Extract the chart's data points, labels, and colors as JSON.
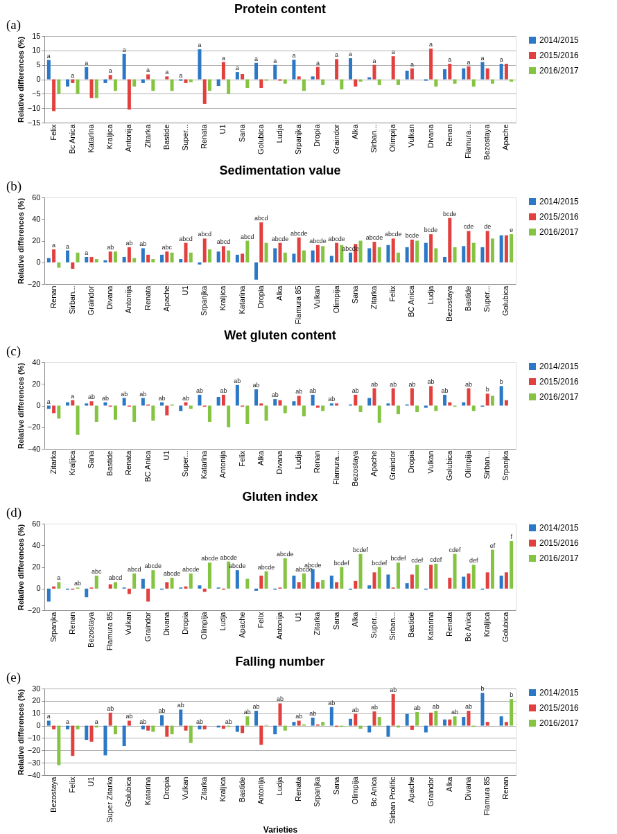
{
  "chart_data": [
    {
      "type": "bar",
      "title": "Protein content",
      "ylabel": "Relative differences (%)",
      "ylim": [
        -15,
        15
      ],
      "yticks": [
        -15,
        -10,
        -5,
        0,
        5,
        10,
        15
      ],
      "grid": "y",
      "legend": "right",
      "categories": [
        "Felix",
        "Bc Anica",
        "Katarina",
        "Kraljica",
        "Antonija",
        "Zitarka",
        "Bastide",
        "Super...",
        "Renata",
        "U1",
        "Sana",
        "Golubica",
        "Ludja",
        "Srpanjka",
        "Dropia",
        "Graindor",
        "Alka",
        "Sirban...",
        "Olimpija",
        "Vulkan",
        "Divana",
        "Renan",
        "Flamura...",
        "Bezostaya",
        "Apache"
      ],
      "series": [
        {
          "name": "2014/2015",
          "color": "#2a78c6",
          "values": [
            6.7,
            -2.5,
            4.2,
            -1.3,
            8.8,
            -1.3,
            0,
            -0.5,
            10.4,
            -2.3,
            2.5,
            5.7,
            5,
            6.8,
            1,
            0,
            7.3,
            0.7,
            0,
            3,
            -0.5,
            3.5,
            3.8,
            6,
            5.4
          ],
          "value_labels": [
            "a",
            null,
            "a",
            null,
            "a",
            null,
            null,
            "a",
            "a",
            null,
            "a",
            "a",
            "a",
            "a",
            null,
            null,
            "a",
            null,
            null,
            null,
            null,
            null,
            null,
            "a",
            "a"
          ]
        },
        {
          "name": "2015/2016",
          "color": "#e2403e",
          "values": [
            -11,
            -1.3,
            -6.5,
            1.5,
            -10.5,
            1.7,
            1,
            -1.3,
            -8.5,
            6,
            1.8,
            -3,
            -0.5,
            1,
            4.3,
            7,
            -2.5,
            5,
            8,
            3.8,
            10.6,
            5.4,
            4.5,
            3.8,
            5.4
          ],
          "value_labels": [
            null,
            "a",
            null,
            "a",
            null,
            "a",
            "a",
            null,
            null,
            "a",
            null,
            null,
            null,
            null,
            "a",
            "a",
            null,
            "a",
            "a",
            "a",
            "a",
            "a",
            "a",
            null,
            null
          ]
        },
        {
          "name": "2016/2017",
          "color": "#84c441",
          "values": [
            -5,
            -5,
            -6.5,
            -4,
            -2.5,
            -4,
            -4,
            -1,
            -4,
            -5,
            -3,
            -0.5,
            -1.5,
            -4,
            -2,
            -3.5,
            -0.8,
            -2,
            -2,
            0,
            -2.5,
            -1.5,
            -2.5,
            -1.5,
            -0.8
          ]
        }
      ],
      "annotations": [
        "(a)"
      ]
    },
    {
      "type": "bar",
      "title": "Sedimentation value",
      "ylabel": "Relative differences (%)",
      "ylim": [
        -20,
        60
      ],
      "yticks": [
        -20,
        0,
        20,
        40,
        60
      ],
      "legend": "right",
      "categories": [
        "Renan",
        "Sirban...",
        "Graindor",
        "Divana",
        "Antonija",
        "Renata",
        "Apache",
        "U1",
        "Srpanjka",
        "Kraljica",
        "Katarina",
        "Dropia",
        "Alka",
        "Flamura 85",
        "Vulkan",
        "Olimpija",
        "Sana",
        "Zitarka",
        "Felix",
        "BC Anica",
        "Ludja",
        "Bezostaya",
        "Bastide",
        "Super...",
        "Golubica"
      ],
      "series": [
        {
          "name": "2014/2015",
          "color": "#2a78c6",
          "values": [
            4,
            11,
            5,
            2,
            5,
            13,
            7,
            3,
            -2,
            10,
            7,
            -16,
            13,
            8,
            11,
            6,
            9,
            13,
            16,
            14,
            18,
            5,
            15,
            14,
            25
          ],
          "value_labels": [
            null,
            "a",
            "a",
            null,
            null,
            "ab",
            null,
            null,
            null,
            null,
            null,
            null,
            null,
            null,
            null,
            null,
            "abcde",
            null,
            null,
            null,
            null,
            null,
            null,
            null,
            null
          ]
        },
        {
          "name": "2015/2016",
          "color": "#e2403e",
          "values": [
            12,
            -6,
            5,
            10,
            14,
            7,
            10,
            18,
            22,
            15,
            8,
            37,
            18,
            23,
            16,
            18,
            17,
            19,
            22,
            21,
            26,
            41,
            29,
            29,
            25
          ],
          "value_labels": [
            "a",
            null,
            null,
            "ab",
            "ab",
            null,
            "abc",
            "abcd",
            "abcd",
            "abcd",
            null,
            "abcd",
            "abcde",
            "abcde",
            "abcde",
            "abcde",
            null,
            "abcde",
            "abcde",
            "bcde",
            "bcde",
            "bcde",
            "cde",
            "de",
            null
          ]
        },
        {
          "name": "2016/2017",
          "color": "#84c441",
          "values": [
            -5,
            9,
            3,
            10,
            4,
            3,
            9,
            9,
            12,
            11,
            20,
            18,
            9,
            11,
            15,
            16,
            20,
            14,
            9,
            20,
            13,
            14,
            18,
            22,
            26
          ],
          "value_labels": [
            null,
            null,
            null,
            null,
            null,
            null,
            null,
            null,
            null,
            null,
            "abcd",
            null,
            null,
            null,
            null,
            null,
            null,
            null,
            null,
            null,
            null,
            null,
            null,
            null,
            "e"
          ]
        }
      ],
      "annotations": [
        "(b)"
      ]
    },
    {
      "type": "bar",
      "title": "Wet gluten content",
      "ylabel": "Relative differences (%)",
      "ylim": [
        -40,
        40
      ],
      "yticks": [
        -40,
        -20,
        0,
        20,
        40
      ],
      "legend": "right",
      "categories": [
        "Zitarka",
        "Kraljica",
        "Sana",
        "Bastide",
        "Renata",
        "BC Anica",
        "U1",
        "Super...",
        "Katarina",
        "Antonija",
        "Felix",
        "Alka",
        "Divana",
        "Ludja",
        "Renan",
        "Flamura...",
        "Bezostaya",
        "Apache",
        "Graindor",
        "Dropia",
        "Vulkan",
        "Golubica",
        "Olimpija",
        "Sirban...",
        "Srpanjka"
      ],
      "series": [
        {
          "name": "2014/2015",
          "color": "#2a78c6",
          "values": [
            -3,
            3,
            2,
            3,
            7,
            7,
            3,
            -5,
            10,
            8,
            19,
            15,
            6,
            4,
            10,
            2,
            1,
            7,
            2,
            1,
            -2,
            10,
            3,
            -1,
            18
          ],
          "value_labels": [
            "a",
            null,
            null,
            "ab",
            "ab",
            "ab",
            "ab",
            null,
            "ab",
            null,
            "ab",
            "ab",
            "ab",
            null,
            "ab",
            "ab",
            null,
            null,
            null,
            null,
            null,
            "ab",
            null,
            null,
            "b"
          ]
        },
        {
          "name": "2015/2016",
          "color": "#e2403e",
          "values": [
            -7,
            5,
            4,
            -1,
            -1,
            1,
            -9,
            3,
            -1,
            10,
            -1,
            2,
            5,
            9,
            -2,
            2,
            10,
            16,
            16,
            16,
            18,
            3,
            16,
            11,
            5
          ],
          "value_labels": [
            null,
            "a",
            "ab",
            null,
            null,
            null,
            null,
            "ab",
            null,
            "ab",
            null,
            null,
            null,
            "ab",
            null,
            null,
            "ab",
            "ab",
            "ab",
            "ab",
            "ab",
            null,
            "ab",
            "b",
            null
          ]
        },
        {
          "name": "2016/2017",
          "color": "#84c441",
          "values": [
            -12,
            -27,
            -15,
            -13,
            -15,
            -14,
            1,
            -3,
            -15,
            -20,
            -17,
            -14,
            -7,
            -10,
            -5,
            0,
            -6,
            -16,
            -8,
            -6,
            -5,
            -1,
            -5,
            9,
            0
          ]
        }
      ],
      "annotations": [
        "(c)"
      ]
    },
    {
      "type": "bar",
      "title": "Gluten index",
      "ylabel": "Relative differences (%)",
      "ylim": [
        -20,
        60
      ],
      "yticks": [
        -20,
        0,
        20,
        40,
        60
      ],
      "legend": "right",
      "categories": [
        "Srpanjka",
        "Renan",
        "Bezostaya",
        "Flamura 85",
        "Vulkan",
        "Graindor",
        "Divana",
        "Dropia",
        "Olimpija",
        "Ludja",
        "Apache",
        "Felix",
        "Antonija",
        "U1",
        "Zitarka",
        "Sana",
        "Alka",
        "Super...",
        "Sirban...",
        "Bastide",
        "Katarina",
        "Renata",
        "Bc Anica",
        "Kraljica",
        "Golubica"
      ],
      "series": [
        {
          "name": "2014/2015",
          "color": "#2a78c6",
          "values": [
            -12,
            -1,
            -8,
            0,
            1,
            9,
            -1,
            1,
            3,
            1,
            17,
            -2,
            -1,
            12,
            18,
            12,
            -1,
            3,
            13,
            5,
            -1,
            0,
            11,
            -1,
            12
          ],
          "value_labels": [
            null,
            null,
            null,
            null,
            null,
            null,
            null,
            null,
            null,
            null,
            "abcde",
            null,
            null,
            null,
            "abcde",
            null,
            null,
            null,
            null,
            null,
            null,
            null,
            null,
            null,
            null
          ]
        },
        {
          "name": "2015/2016",
          "color": "#e2403e",
          "values": [
            2,
            -1,
            1,
            4,
            -5,
            -12,
            6,
            2,
            -3,
            -1,
            0,
            12,
            1,
            6,
            6,
            6,
            7,
            15,
            1,
            13,
            22,
            10,
            14,
            15,
            15
          ]
        },
        {
          "name": "2016/2017",
          "color": "#84c441",
          "values": [
            6,
            1,
            12,
            6,
            14,
            17,
            10,
            14,
            24,
            25,
            9,
            16,
            28,
            14,
            8,
            20,
            32,
            20,
            24,
            22,
            23,
            32,
            22,
            36,
            44
          ],
          "value_labels": [
            "a",
            "ab",
            "abc",
            "abcd",
            "abcd",
            "abcde",
            "abcde",
            "abcde",
            "abcde",
            "abcde",
            null,
            "abcde",
            "abcde",
            "abcde",
            null,
            "bcdef",
            "bcdef",
            "bcdef",
            "bcdef",
            "cdef",
            "cdef",
            "cdef",
            "def",
            "ef",
            "f"
          ]
        }
      ],
      "annotations": [
        "(d)"
      ]
    },
    {
      "type": "bar",
      "title": "Falling number",
      "ylabel": "Relative differences (%)",
      "xlabel": "Varieties",
      "ylim": [
        -40,
        30
      ],
      "yticks": [
        -40,
        -30,
        -20,
        -10,
        0,
        10,
        20,
        30
      ],
      "grid": "y",
      "legend": "right",
      "categories": [
        "Bezostaya",
        "Felix",
        "U1",
        "Super Zitarka",
        "Golubica",
        "Katarina",
        "Dropia",
        "Vulkan",
        "Zitarka",
        "Kraljica",
        "Bastide",
        "Antonija",
        "Ludja",
        "Renata",
        "Srpanjka",
        "Sana",
        "Olimpija",
        "Bc Anica",
        "Sirban Prolific",
        "Apache",
        "Graindor",
        "Alka",
        "Divana",
        "Flamura 85",
        "Renan"
      ],
      "series": [
        {
          "name": "2014/2015",
          "color": "#2a78c6",
          "values": [
            4,
            -3,
            -11.5,
            -24,
            -16.5,
            -3,
            8.5,
            13,
            -3,
            -1.5,
            -5,
            12,
            -7,
            3,
            6.5,
            15,
            5.5,
            -5.5,
            -9,
            9.5,
            -5.5,
            5,
            7,
            26.5,
            7.5
          ],
          "value_labels": [
            "a",
            "a",
            null,
            null,
            null,
            "ab",
            "ab",
            "ab",
            "ab",
            null,
            null,
            "ab",
            null,
            null,
            "ab",
            "ab",
            null,
            null,
            null,
            null,
            null,
            null,
            null,
            "b",
            null
          ]
        },
        {
          "name": "2015/2016",
          "color": "#e2403e",
          "values": [
            -3,
            -24.5,
            -13,
            10.5,
            4,
            -4,
            -9,
            -4,
            -3,
            -2.5,
            -6,
            -15.5,
            18,
            4,
            1,
            -1,
            9.5,
            11.5,
            25.5,
            -3.5,
            10.5,
            5,
            12,
            3,
            3
          ],
          "value_labels": [
            null,
            null,
            null,
            "ab",
            "ab",
            null,
            null,
            null,
            null,
            null,
            null,
            null,
            "ab",
            "ab",
            null,
            null,
            "ab",
            "ab",
            "ab",
            null,
            null,
            null,
            "ab",
            null,
            null
          ]
        },
        {
          "name": "2016/2017",
          "color": "#84c441",
          "values": [
            -32,
            -3,
            -1.5,
            -7,
            0,
            -5,
            -7,
            -14,
            0,
            -1,
            7.5,
            0.5,
            -4,
            1,
            3,
            -1,
            -2.5,
            7,
            -1.5,
            11,
            12,
            7.5,
            -1,
            0,
            21.5
          ],
          "value_labels": [
            null,
            null,
            "a",
            null,
            null,
            null,
            null,
            null,
            null,
            "ab",
            "ab",
            null,
            null,
            null,
            null,
            null,
            null,
            null,
            null,
            "ab",
            "ab",
            "ab",
            null,
            null,
            "b"
          ]
        }
      ],
      "annotations": [
        "(e)"
      ]
    }
  ]
}
